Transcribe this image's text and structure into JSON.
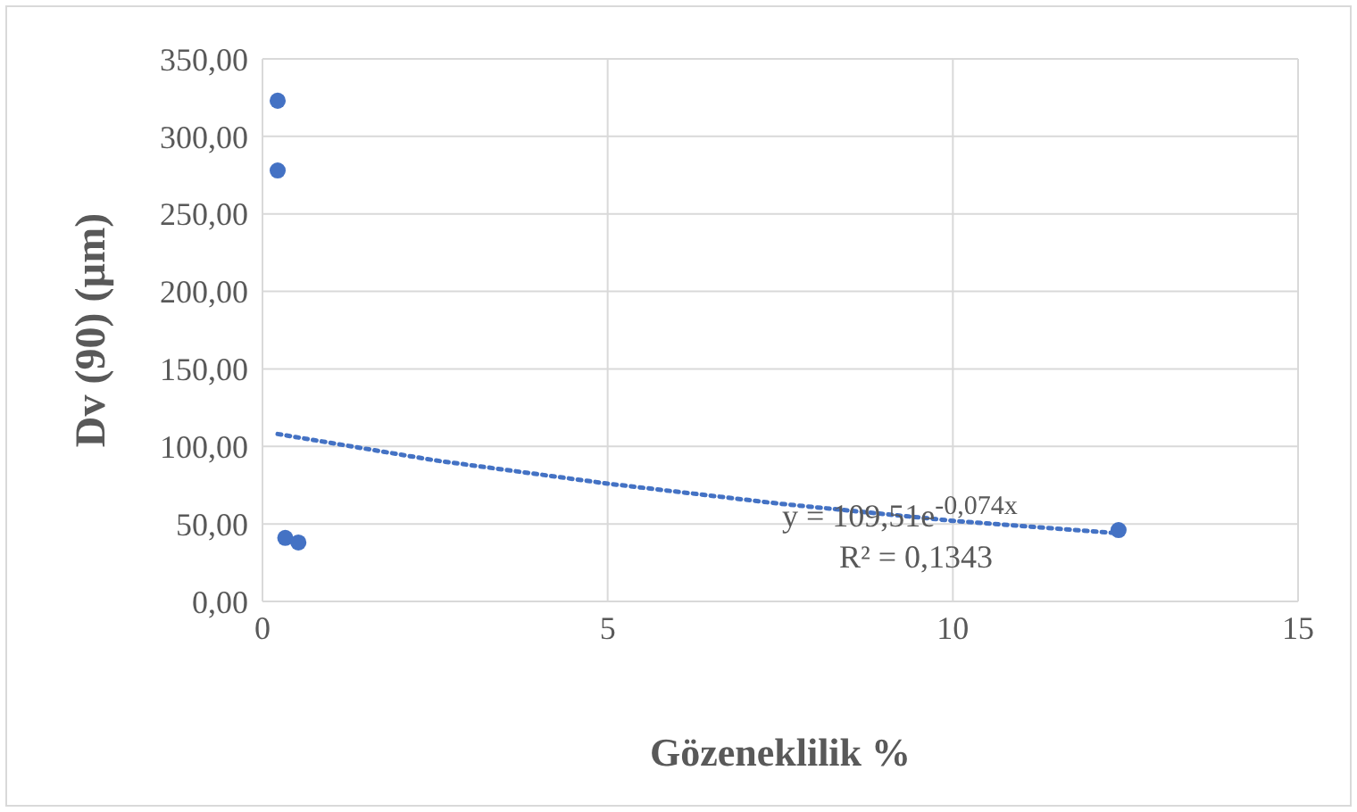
{
  "chart_data": {
    "type": "scatter",
    "xlabel": "Gözeneklilik %",
    "ylabel": "Dv (90) (µm)",
    "xlim": [
      0,
      15
    ],
    "xticks": [
      0,
      5,
      10,
      15
    ],
    "ylim": [
      0,
      350
    ],
    "yticks": [
      {
        "value": 0,
        "label": "0,00"
      },
      {
        "value": 50,
        "label": "50,00"
      },
      {
        "value": 100,
        "label": "100,00"
      },
      {
        "value": 150,
        "label": "150,00"
      },
      {
        "value": 200,
        "label": "200,00"
      },
      {
        "value": 250,
        "label": "250,00"
      },
      {
        "value": 300,
        "label": "300,00"
      },
      {
        "value": 350,
        "label": "350,00"
      }
    ],
    "grid": true,
    "marker": "circle",
    "series": [
      {
        "color": "#4472c4",
        "x": [
          0.22,
          0.22,
          0.33,
          0.52,
          12.4
        ],
        "values": [
          323,
          278,
          41,
          38,
          46
        ]
      },
      {
        "type": "line",
        "color": "#4472c4",
        "line_style": "dotted",
        "marker": "none",
        "x": [
          0.22,
          2.5,
          5,
          7.5,
          10,
          12.4
        ],
        "values": [
          108,
          91,
          76,
          63,
          52,
          44
        ]
      }
    ],
    "annotations": [
      "y = 109,51e$^{-0,074x}$",
      "R² = 0,1343"
    ]
  }
}
